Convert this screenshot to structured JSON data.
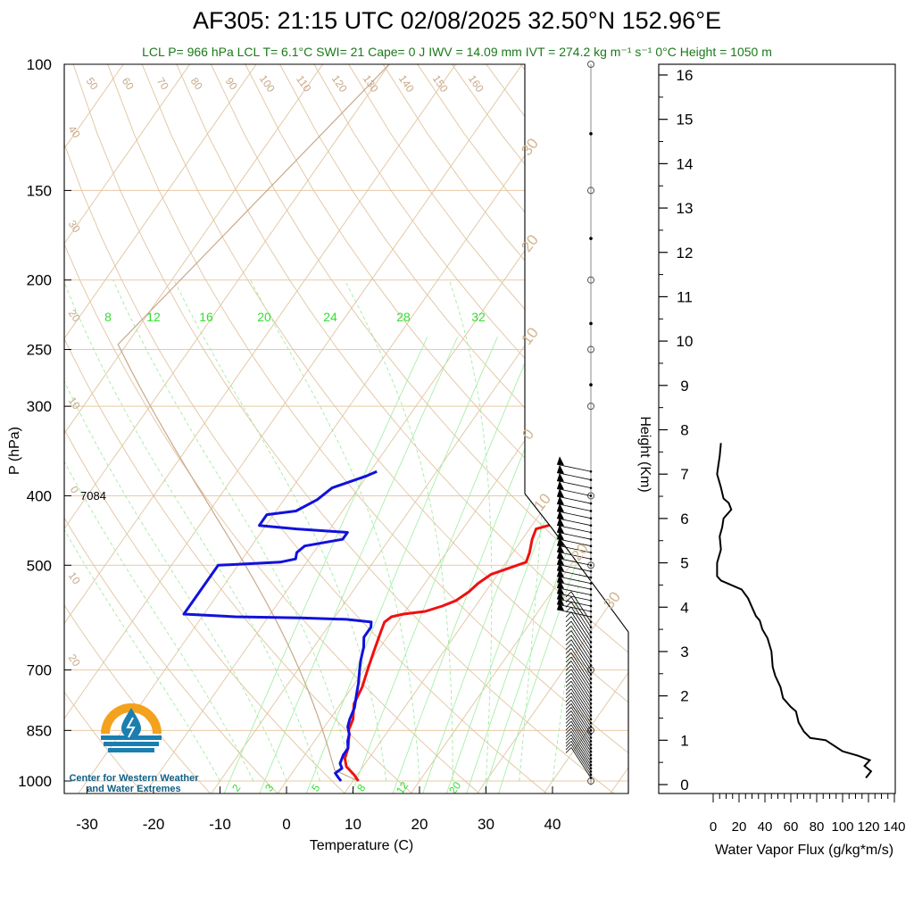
{
  "header": {
    "title": "AF305: 21:15 UTC 02/08/2025  32.50°N 152.96°E",
    "subtitle": "LCL P= 966 hPa  LCL T= 6.1°C  SWI= 21  Cape= 0 J  IWV = 14.09 mm  IVT = 274.2 kg m⁻¹ s⁻¹  0°C Height = 1050 m"
  },
  "logo": {
    "line1": "Center for Western Weather",
    "line2": "and Water Extremes"
  },
  "annotation": "7084",
  "colors": {
    "temperature": "#ee1111",
    "dewpoint": "#1111dd",
    "mixing_ratio": "#33dd33",
    "adiabat": "#d2b48c",
    "flux": "#000000",
    "logo_orange": "#f4a11d",
    "logo_blue": "#1a7fb0"
  },
  "chart_data": [
    {
      "type": "line",
      "title": "Skew-T",
      "xlabel": "Temperature (C)",
      "ylabel": "P (hPa)",
      "y_log_scale": true,
      "y_reversed": true,
      "xlim": [
        -33,
        52
      ],
      "ylim": [
        1000,
        100
      ],
      "x_ticks": [
        -30,
        -20,
        -10,
        0,
        10,
        20,
        30,
        40
      ],
      "y_ticks": [
        100,
        150,
        200,
        250,
        300,
        400,
        500,
        700,
        850,
        1000
      ],
      "mixing_ratio_labels_top": [
        "8",
        "12",
        "16",
        "20",
        "24",
        "28",
        "32"
      ],
      "mixing_ratio_labels_bottom": [
        "2",
        "3",
        "5",
        "8",
        "12",
        "20"
      ],
      "theta_labels": [
        "50",
        "60",
        "70",
        "80",
        "90",
        "100",
        "110",
        "120",
        "130",
        "140",
        "150",
        "160"
      ],
      "isotherm_labels": [
        "40",
        "30",
        "20",
        "10",
        "0",
        "10",
        "20"
      ],
      "right_isotherm_labels": [
        "30",
        "20",
        "10",
        "0",
        "10",
        "20",
        "30"
      ],
      "series": [
        {
          "name": "Temperature",
          "points": [
            [
              10.8,
              1000
            ],
            [
              9.5,
              980
            ],
            [
              7.5,
              955
            ],
            [
              6.4,
              930
            ],
            [
              5.8,
              900
            ],
            [
              4.5,
              860
            ],
            [
              4.0,
              850
            ],
            [
              3.5,
              820
            ],
            [
              2.0,
              780
            ],
            [
              1.5,
              740
            ],
            [
              0.5,
              700
            ],
            [
              -0.5,
              660
            ],
            [
              -1.5,
              620
            ],
            [
              -2.0,
              600
            ],
            [
              -1.5,
              590
            ],
            [
              0,
              585
            ],
            [
              3,
              580
            ],
            [
              5,
              570
            ],
            [
              6.5,
              560
            ],
            [
              7.5,
              545
            ],
            [
              8,
              530
            ],
            [
              9,
              515
            ],
            [
              11,
              505
            ],
            [
              13,
              495
            ],
            [
              12.5,
              480
            ],
            [
              11.5,
              460
            ],
            [
              11,
              445
            ],
            [
              12.5,
              440
            ],
            [
              14,
              435
            ],
            [
              14.5,
              420
            ],
            [
              14.5,
              405
            ],
            [
              14.5,
              390
            ],
            [
              15.5,
              380
            ],
            [
              16.0,
              370
            ]
          ]
        },
        {
          "name": "Dewpoint",
          "points": [
            [
              8.2,
              1000
            ],
            [
              7.5,
              990
            ],
            [
              6.5,
              975
            ],
            [
              7.0,
              960
            ],
            [
              6.2,
              945
            ],
            [
              5.8,
              920
            ],
            [
              5.8,
              900
            ],
            [
              5.0,
              880
            ],
            [
              4.5,
              860
            ],
            [
              3.5,
              840
            ],
            [
              3.0,
              820
            ],
            [
              2.5,
              790
            ],
            [
              1.5,
              760
            ],
            [
              0.5,
              730
            ],
            [
              -0.5,
              705
            ],
            [
              -1.5,
              680
            ],
            [
              -2.5,
              650
            ],
            [
              -3.5,
              630
            ],
            [
              -3.5,
              610
            ],
            [
              -4.0,
              600
            ],
            [
              -8,
              595
            ],
            [
              -15,
              592
            ],
            [
              -25,
              590
            ],
            [
              -33,
              585
            ],
            [
              -33,
              500
            ],
            [
              -24,
              495
            ],
            [
              -22,
              490
            ],
            [
              -22.5,
              480
            ],
            [
              -22,
              470
            ],
            [
              -17,
              460
            ],
            [
              -17,
              450
            ],
            [
              -25,
              445
            ],
            [
              -31,
              440
            ],
            [
              -31,
              425
            ],
            [
              -27,
              420
            ],
            [
              -25,
              405
            ],
            [
              -24,
              390
            ],
            [
              -20,
              375
            ],
            [
              -19,
              370
            ]
          ]
        }
      ]
    },
    {
      "type": "line",
      "title": "Water Vapor Flux",
      "xlabel": "Water Vapor Flux (g/kg*m/s)",
      "ylabel": "Height (Km)",
      "xlim": [
        0,
        140
      ],
      "ylim": [
        0,
        16.3
      ],
      "x_ticks": [
        0,
        20,
        40,
        60,
        80,
        100,
        120,
        140
      ],
      "y_ticks": [
        0,
        1,
        2,
        3,
        4,
        5,
        6,
        7,
        8,
        9,
        10,
        11,
        12,
        13,
        14,
        15,
        16
      ],
      "series": [
        {
          "name": "",
          "points": [
            [
              118,
              0.15
            ],
            [
              122,
              0.3
            ],
            [
              117,
              0.42
            ],
            [
              121,
              0.55
            ],
            [
              112,
              0.65
            ],
            [
              100,
              0.75
            ],
            [
              87,
              1.0
            ],
            [
              75,
              1.05
            ],
            [
              70,
              1.2
            ],
            [
              66,
              1.4
            ],
            [
              64,
              1.65
            ],
            [
              60,
              1.75
            ],
            [
              54,
              1.95
            ],
            [
              52,
              2.2
            ],
            [
              48,
              2.45
            ],
            [
              46,
              2.65
            ],
            [
              45,
              3.0
            ],
            [
              42,
              3.3
            ],
            [
              38,
              3.5
            ],
            [
              36,
              3.7
            ],
            [
              33,
              3.8
            ],
            [
              30,
              4.0
            ],
            [
              27,
              4.2
            ],
            [
              22,
              4.4
            ],
            [
              14,
              4.5
            ],
            [
              6,
              4.6
            ],
            [
              3,
              4.7
            ],
            [
              3,
              5.0
            ],
            [
              6,
              5.3
            ],
            [
              5,
              5.6
            ],
            [
              7,
              5.8
            ],
            [
              8,
              6.0
            ],
            [
              14,
              6.2
            ],
            [
              12,
              6.35
            ],
            [
              8,
              6.45
            ],
            [
              6,
              6.7
            ],
            [
              3,
              7.0
            ],
            [
              4,
              7.2
            ],
            [
              5,
              7.4
            ],
            [
              6,
              7.7
            ]
          ]
        }
      ]
    }
  ]
}
